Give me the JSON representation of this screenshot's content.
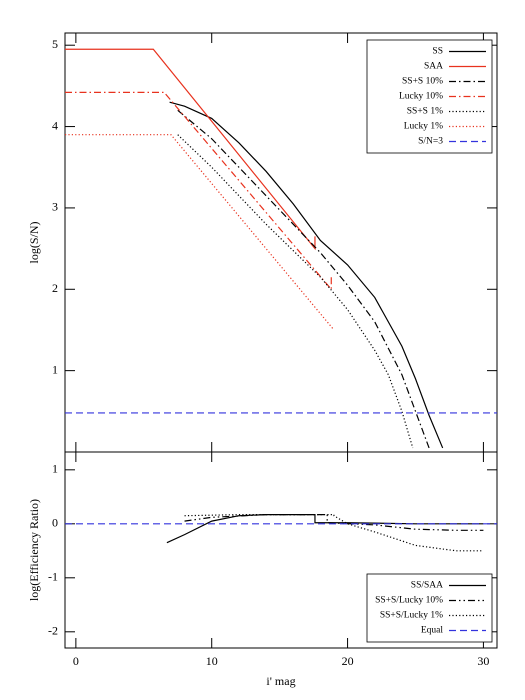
{
  "chart_data": [
    {
      "type": "line",
      "ylabel": "log(S/N)",
      "xlim": [
        -0.8,
        31
      ],
      "ylim": [
        0,
        5.15
      ],
      "xticks": [
        0,
        10,
        20,
        30
      ],
      "yticks": [
        1,
        2,
        3,
        4,
        5
      ],
      "legend": "upper right",
      "series": [
        {
          "name": "SS",
          "color": "#000000",
          "linestyle": "solid",
          "x": [
            6.9,
            8,
            10,
            12,
            14,
            16,
            18,
            20,
            22,
            24,
            25,
            26,
            27
          ],
          "values": [
            4.3,
            4.25,
            4.1,
            3.8,
            3.45,
            3.05,
            2.6,
            2.3,
            1.9,
            1.3,
            0.9,
            0.45,
            0.05
          ]
        },
        {
          "name": "SAA",
          "color": "#e8321e",
          "linestyle": "solid",
          "x": [
            -0.8,
            5.7,
            17.6,
            17.6
          ],
          "values": [
            4.95,
            4.95,
            2.5,
            2.65
          ]
        },
        {
          "name": "SS+S 10%",
          "color": "#000000",
          "linestyle": "dashdot",
          "x": [
            7.5,
            10,
            14,
            18,
            20,
            22,
            24,
            25,
            26
          ],
          "values": [
            4.2,
            3.85,
            3.15,
            2.45,
            2.05,
            1.6,
            0.95,
            0.5,
            0.05
          ]
        },
        {
          "name": "Lucky 10%",
          "color": "#e8321e",
          "linestyle": "dashdot",
          "x": [
            -0.8,
            6.5,
            18.8,
            18.8
          ],
          "values": [
            4.42,
            4.42,
            2.0,
            2.15
          ]
        },
        {
          "name": "SS+S 1%",
          "color": "#000000",
          "linestyle": "dotted",
          "x": [
            7.5,
            10,
            14,
            18,
            20,
            22,
            23,
            24,
            24.8
          ],
          "values": [
            3.9,
            3.5,
            2.8,
            2.15,
            1.75,
            1.25,
            0.95,
            0.5,
            0.05
          ]
        },
        {
          "name": "Lucky 1%",
          "color": "#e8321e",
          "linestyle": "dotted",
          "x": [
            -0.8,
            7,
            19
          ],
          "values": [
            3.9,
            3.9,
            1.5
          ]
        },
        {
          "name": "S/N=3",
          "color": "#3333dd",
          "linestyle": "dashed",
          "x": [
            -0.8,
            31
          ],
          "values": [
            0.48,
            0.48
          ]
        }
      ]
    },
    {
      "type": "line",
      "ylabel": "log(Efficiency Ratio)",
      "xlabel": "i' mag",
      "xlim": [
        -0.8,
        31
      ],
      "ylim": [
        -2.3,
        1.33
      ],
      "xticks": [
        0,
        10,
        20,
        30
      ],
      "yticks": [
        -2,
        -1,
        0,
        1
      ],
      "legend": "lower right",
      "series": [
        {
          "name": "SS/SAA",
          "color": "#000000",
          "linestyle": "solid",
          "x": [
            6.7,
            8,
            10,
            12,
            14,
            17.6,
            17.6,
            20,
            25,
            30
          ],
          "values": [
            -0.35,
            -0.2,
            0.05,
            0.15,
            0.17,
            0.17,
            0.02,
            0.02,
            0.0,
            0.0
          ]
        },
        {
          "name": "SS+S/Lucky 10%",
          "color": "#000000",
          "linestyle": "dashdotdot",
          "x": [
            8,
            10,
            14,
            18.5,
            18.5,
            22,
            25,
            28,
            30
          ],
          "values": [
            0.05,
            0.12,
            0.17,
            0.17,
            0.02,
            -0.02,
            -0.1,
            -0.12,
            -0.12
          ]
        },
        {
          "name": "SS+S/Lucky 1%",
          "color": "#000000",
          "linestyle": "dotted",
          "x": [
            8,
            12,
            19,
            19,
            20,
            22,
            25,
            28,
            30
          ],
          "values": [
            0.15,
            0.17,
            0.17,
            0.15,
            0.0,
            -0.15,
            -0.4,
            -0.5,
            -0.5
          ]
        },
        {
          "name": "Equal",
          "color": "#3333dd",
          "linestyle": "dashed",
          "x": [
            -0.8,
            31
          ],
          "values": [
            0.0,
            0.0
          ]
        }
      ]
    }
  ]
}
